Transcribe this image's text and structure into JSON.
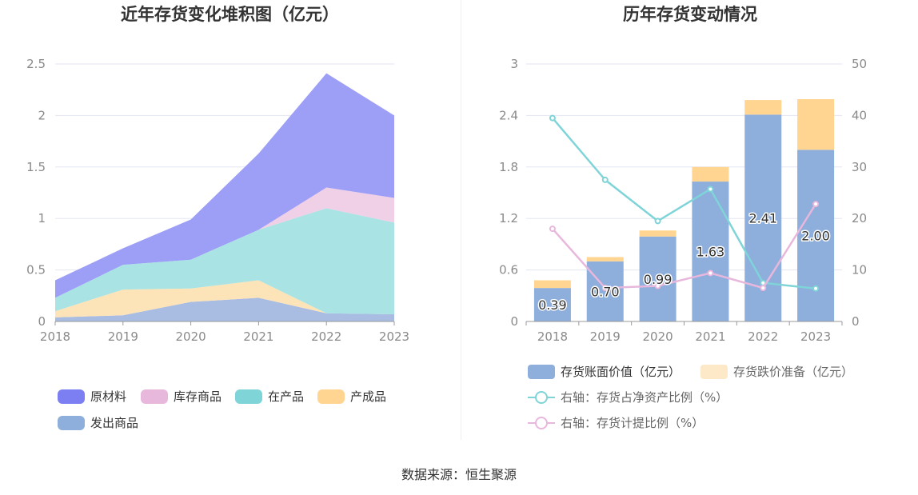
{
  "source_text": "数据来源：恒生聚源",
  "chart_data": [
    {
      "type": "area",
      "title": "近年存货变化堆积图（亿元）",
      "x": [
        "2018",
        "2019",
        "2020",
        "2021",
        "2022",
        "2023"
      ],
      "ylim": [
        0,
        2.5
      ],
      "yticks": [
        "0",
        "0.5",
        "1",
        "1.5",
        "2",
        "2.5"
      ],
      "grid": true,
      "legend_position": "bottom",
      "series": [
        {
          "name": "发出商品",
          "color": "#a9bde3",
          "legend_color": "#8eaedc",
          "values": [
            0.04,
            0.06,
            0.19,
            0.23,
            0.08,
            0.07
          ]
        },
        {
          "name": "产成品",
          "color": "#fde3b8",
          "legend_color": "#ffd591",
          "values": [
            0.06,
            0.25,
            0.13,
            0.17,
            0.0,
            0.0
          ]
        },
        {
          "name": "在产品",
          "color": "#a9e3e3",
          "legend_color": "#7fd4d8",
          "values": [
            0.13,
            0.24,
            0.28,
            0.49,
            1.02,
            0.89
          ]
        },
        {
          "name": "库存商品",
          "color": "#efd0e6",
          "legend_color": "#e8b7dc",
          "values": [
            0.0,
            0.0,
            0.0,
            0.0,
            0.2,
            0.24
          ]
        },
        {
          "name": "原材料",
          "color": "#9d9ff7",
          "legend_color": "#7b7ff2",
          "values": [
            0.17,
            0.16,
            0.39,
            0.74,
            1.11,
            0.8
          ]
        }
      ],
      "legend_order": [
        "原材料",
        "库存商品",
        "在产品",
        "产成品",
        "发出商品"
      ]
    },
    {
      "type": "bar",
      "title": "历年存货变动情况",
      "categories": [
        "2018",
        "2019",
        "2020",
        "2021",
        "2022",
        "2023"
      ],
      "ylim": [
        0,
        3
      ],
      "yticks": [
        "0",
        "0.6",
        "1.2",
        "1.8",
        "2.4",
        "3"
      ],
      "y2lim": [
        0,
        50
      ],
      "y2ticks": [
        "0",
        "10",
        "20",
        "30",
        "40",
        "50"
      ],
      "grid": true,
      "legend_position": "bottom",
      "series": [
        {
          "name": "存货账面价值（亿元）",
          "kind": "bar",
          "stack": "inv",
          "color": "#8eaedc",
          "values": [
            0.39,
            0.7,
            0.99,
            1.63,
            2.41,
            2.0
          ],
          "labels": [
            "0.39",
            "0.70",
            "0.99",
            "1.63",
            "2.41",
            "2.00"
          ]
        },
        {
          "name": "存货跌价准备（亿元）",
          "kind": "bar",
          "stack": "inv",
          "color": "#ffd591",
          "legend_color": "#fde8c7",
          "values": [
            0.09,
            0.05,
            0.07,
            0.17,
            0.17,
            0.59
          ]
        },
        {
          "name": "右轴：存货占净资产比例（%）",
          "kind": "line",
          "axis": "right",
          "color": "#7fd4d8",
          "values": [
            39.5,
            27.5,
            19.5,
            25.7,
            7.5,
            6.4
          ]
        },
        {
          "name": "右轴：存货计提比例（%）",
          "kind": "line",
          "axis": "right",
          "color": "#e8b7dc",
          "values": [
            18.0,
            6.5,
            6.9,
            9.4,
            6.5,
            22.8
          ]
        }
      ]
    }
  ]
}
